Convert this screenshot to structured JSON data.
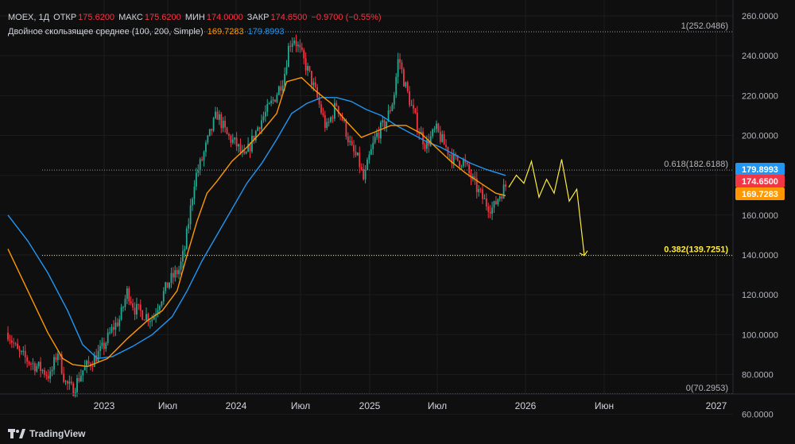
{
  "header": {
    "symbol": "MOEX, 1Д",
    "open_label": "ОТКР",
    "open": "175.6200",
    "high_label": "МАКС",
    "high": "175.6200",
    "low_label": "МИН",
    "low": "174.0000",
    "close_label": "ЗАКР",
    "close": "174.6500",
    "change": "−0.9700 (−0.55%)",
    "indicator_name": "Двойное скользящее среднее (100, 200, Simple)",
    "ma100_value": "169.7283",
    "ma200_value": "179.8993"
  },
  "branding": {
    "name": "TradingView"
  },
  "colors": {
    "background": "#0f0f0f",
    "grid": "#1c1c1f",
    "text": "#b2b5be",
    "up": "#22ab94",
    "down": "#f23645",
    "ma100": "#ff9800",
    "ma200": "#2196f3",
    "projection": "#ffeb3b"
  },
  "chart_data": {
    "type": "candlestick",
    "ylim": [
      55,
      265
    ],
    "yticks": [
      "260.0000",
      "240.0000",
      "220.0000",
      "200.0000",
      "180.0000",
      "160.0000",
      "140.0000",
      "120.0000",
      "100.0000",
      "80.0000",
      "60.0000"
    ],
    "xtick_labels": [
      "2023",
      "Июл",
      "2024",
      "Июл",
      "2025",
      "Июл",
      "2026",
      "Июн",
      "2027"
    ],
    "fib_levels": [
      {
        "label": "1(252.0486)",
        "value": 252.0486
      },
      {
        "label": "0.618(182.6188)",
        "value": 182.6188
      },
      {
        "label": "0.382(139.7251)",
        "value": 139.7251,
        "highlight": true
      },
      {
        "label": "0(70.2953)",
        "value": 70.2953
      }
    ],
    "price_badges": [
      {
        "label": "179.8993",
        "value": 179.8993,
        "series": "ma200"
      },
      {
        "label": "174.6500",
        "value": 174.65,
        "series": "price"
      },
      {
        "label": "169.7283",
        "value": 169.7283,
        "series": "ma100"
      }
    ],
    "price_path": [
      [
        0.0,
        101
      ],
      [
        0.02,
        91
      ],
      [
        0.045,
        86
      ],
      [
        0.065,
        83
      ],
      [
        0.085,
        79
      ],
      [
        0.1,
        92
      ],
      [
        0.115,
        76
      ],
      [
        0.13,
        72
      ],
      [
        0.15,
        82
      ],
      [
        0.17,
        87
      ],
      [
        0.19,
        93
      ],
      [
        0.21,
        103
      ],
      [
        0.225,
        108
      ],
      [
        0.24,
        122
      ],
      [
        0.255,
        113
      ],
      [
        0.275,
        110
      ],
      [
        0.29,
        108
      ],
      [
        0.305,
        117
      ],
      [
        0.325,
        127
      ],
      [
        0.345,
        133
      ],
      [
        0.355,
        143
      ],
      [
        0.365,
        160
      ],
      [
        0.375,
        178
      ],
      [
        0.39,
        188
      ],
      [
        0.405,
        200
      ],
      [
        0.42,
        211
      ],
      [
        0.44,
        200
      ],
      [
        0.46,
        195
      ],
      [
        0.475,
        188
      ],
      [
        0.49,
        197
      ],
      [
        0.505,
        206
      ],
      [
        0.525,
        214
      ],
      [
        0.54,
        221
      ],
      [
        0.555,
        230
      ],
      [
        0.565,
        246
      ],
      [
        0.575,
        249
      ],
      [
        0.59,
        240
      ],
      [
        0.605,
        231
      ],
      [
        0.62,
        220
      ],
      [
        0.64,
        203
      ],
      [
        0.66,
        216
      ],
      [
        0.675,
        206
      ],
      [
        0.69,
        193
      ],
      [
        0.705,
        187
      ],
      [
        0.715,
        177
      ],
      [
        0.725,
        188
      ],
      [
        0.74,
        200
      ],
      [
        0.76,
        207
      ],
      [
        0.775,
        219
      ],
      [
        0.785,
        240
      ],
      [
        0.795,
        228
      ],
      [
        0.81,
        215
      ],
      [
        0.825,
        203
      ],
      [
        0.84,
        195
      ],
      [
        0.86,
        203
      ],
      [
        0.875,
        196
      ],
      [
        0.895,
        188
      ],
      [
        0.915,
        187
      ],
      [
        0.93,
        179
      ],
      [
        0.945,
        172
      ],
      [
        0.96,
        166
      ],
      [
        0.975,
        163
      ],
      [
        0.985,
        169
      ],
      [
        1.0,
        174.65
      ]
    ],
    "ma100": [
      [
        0.0,
        143
      ],
      [
        0.04,
        122
      ],
      [
        0.08,
        101
      ],
      [
        0.11,
        88
      ],
      [
        0.13,
        85
      ],
      [
        0.16,
        84
      ],
      [
        0.2,
        88
      ],
      [
        0.24,
        98
      ],
      [
        0.28,
        107
      ],
      [
        0.31,
        112
      ],
      [
        0.34,
        122
      ],
      [
        0.36,
        140
      ],
      [
        0.38,
        157
      ],
      [
        0.4,
        171
      ],
      [
        0.42,
        177
      ],
      [
        0.45,
        187
      ],
      [
        0.48,
        194
      ],
      [
        0.51,
        202
      ],
      [
        0.54,
        211
      ],
      [
        0.56,
        227
      ],
      [
        0.59,
        229
      ],
      [
        0.62,
        222
      ],
      [
        0.65,
        216
      ],
      [
        0.68,
        207
      ],
      [
        0.71,
        199
      ],
      [
        0.74,
        202
      ],
      [
        0.77,
        205
      ],
      [
        0.8,
        205
      ],
      [
        0.83,
        201
      ],
      [
        0.86,
        194
      ],
      [
        0.89,
        187
      ],
      [
        0.92,
        181
      ],
      [
        0.95,
        176
      ],
      [
        0.98,
        171
      ],
      [
        1.0,
        169.73
      ]
    ],
    "ma200": [
      [
        0.0,
        160
      ],
      [
        0.04,
        147
      ],
      [
        0.08,
        131
      ],
      [
        0.12,
        112
      ],
      [
        0.15,
        95
      ],
      [
        0.18,
        88
      ],
      [
        0.21,
        89
      ],
      [
        0.25,
        94
      ],
      [
        0.29,
        100
      ],
      [
        0.33,
        109
      ],
      [
        0.36,
        122
      ],
      [
        0.39,
        137
      ],
      [
        0.42,
        150
      ],
      [
        0.45,
        163
      ],
      [
        0.48,
        176
      ],
      [
        0.51,
        186
      ],
      [
        0.54,
        198
      ],
      [
        0.57,
        211
      ],
      [
        0.6,
        216
      ],
      [
        0.63,
        219
      ],
      [
        0.66,
        219
      ],
      [
        0.69,
        217
      ],
      [
        0.72,
        213
      ],
      [
        0.75,
        210
      ],
      [
        0.78,
        205
      ],
      [
        0.81,
        201
      ],
      [
        0.84,
        197
      ],
      [
        0.87,
        194
      ],
      [
        0.9,
        190
      ],
      [
        0.93,
        186
      ],
      [
        0.96,
        183
      ],
      [
        1.0,
        179.9
      ]
    ],
    "projection": [
      [
        0,
        174
      ],
      [
        1,
        180
      ],
      [
        2,
        176
      ],
      [
        3,
        187
      ],
      [
        4,
        169
      ],
      [
        5,
        178
      ],
      [
        6,
        171
      ],
      [
        7,
        188
      ],
      [
        8,
        167
      ],
      [
        9,
        173
      ],
      [
        10,
        139.7
      ]
    ]
  }
}
